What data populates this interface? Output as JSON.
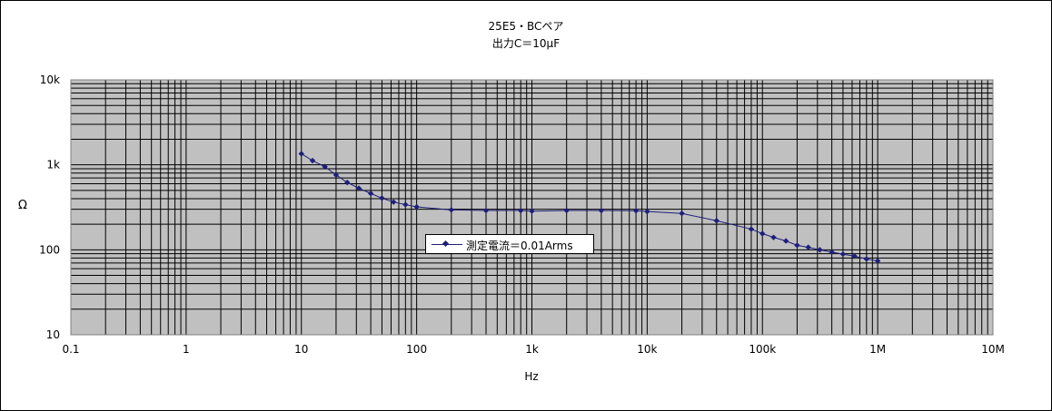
{
  "chart_data": {
    "type": "line",
    "title": "25E5・BCペア",
    "subtitle": "出力C＝10μF",
    "xlabel": "Hz",
    "ylabel": "Ω",
    "x_scale": "log",
    "y_scale": "log",
    "xlim": [
      0.1,
      10000000
    ],
    "ylim": [
      10,
      10000
    ],
    "grid": true,
    "legend_position": "center",
    "x_tick_labels": [
      "0.1",
      "1",
      "10",
      "100",
      "1k",
      "10k",
      "100k",
      "1M",
      "10M"
    ],
    "y_tick_labels": [
      "10k",
      "1k",
      "100",
      "10"
    ],
    "series": [
      {
        "name": "測定電流＝0.01Arms",
        "color": "#1f1f7a",
        "marker": "diamond",
        "x": [
          10,
          12.5,
          16,
          20,
          25,
          31.5,
          40,
          50,
          63,
          80,
          100,
          200,
          400,
          800,
          1000,
          2000,
          4000,
          8000,
          10000,
          20000,
          40000,
          80000,
          100000,
          125000,
          160000,
          200000,
          250000,
          315000,
          400000,
          500000,
          630000,
          800000,
          1000000
        ],
        "y": [
          1350,
          1120,
          950,
          760,
          620,
          530,
          460,
          405,
          365,
          340,
          320,
          295,
          290,
          290,
          285,
          290,
          290,
          288,
          282,
          268,
          220,
          175,
          155,
          140,
          127,
          113,
          107,
          100,
          94,
          89,
          84,
          78,
          74
        ]
      }
    ]
  }
}
